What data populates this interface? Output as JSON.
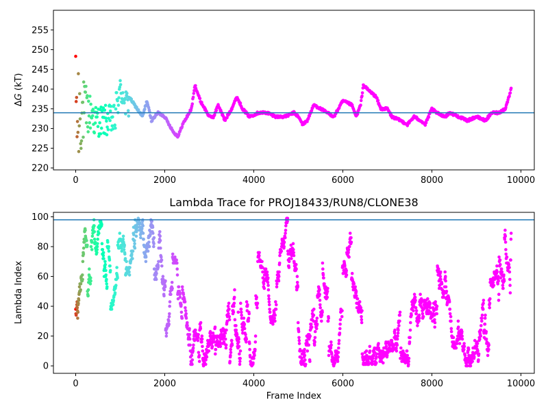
{
  "colors": {
    "reference_line": "#1f77b4",
    "colormap": "rainbow"
  },
  "chart_data": [
    {
      "type": "scatter",
      "title": "",
      "xlabel": "",
      "ylabel_delta": "Δ",
      "ylabel_g": "G",
      "ylabel_unit": " (kT)",
      "xlim": [
        -500,
        10300
      ],
      "ylim": [
        219.5,
        260
      ],
      "xticks": [
        0,
        2000,
        4000,
        6000,
        8000,
        10000
      ],
      "yticks": [
        220,
        225,
        230,
        235,
        240,
        245,
        250,
        255
      ],
      "reference_y": 234,
      "x_end": 9780,
      "estimate_trace_keypoints": [
        [
          1200,
          238
        ],
        [
          1500,
          233
        ],
        [
          1600,
          237
        ],
        [
          1700,
          232
        ],
        [
          1850,
          234
        ],
        [
          2000,
          233
        ],
        [
          2200,
          229
        ],
        [
          2300,
          228
        ],
        [
          2400,
          231
        ],
        [
          2500,
          233
        ],
        [
          2600,
          235
        ],
        [
          2680,
          241
        ],
        [
          2800,
          237
        ],
        [
          2900,
          235
        ],
        [
          3000,
          233
        ],
        [
          3100,
          233
        ],
        [
          3200,
          236
        ],
        [
          3350,
          232
        ],
        [
          3500,
          235
        ],
        [
          3620,
          238
        ],
        [
          3750,
          235
        ],
        [
          3900,
          233
        ],
        [
          4100,
          234
        ],
        [
          4300,
          234
        ],
        [
          4500,
          233
        ],
        [
          4700,
          233
        ],
        [
          4900,
          234
        ],
        [
          5000,
          233
        ],
        [
          5100,
          231
        ],
        [
          5200,
          232
        ],
        [
          5350,
          236
        ],
        [
          5500,
          235
        ],
        [
          5650,
          234
        ],
        [
          5800,
          233
        ],
        [
          5950,
          236
        ],
        [
          6000,
          237
        ],
        [
          6200,
          236
        ],
        [
          6300,
          233
        ],
        [
          6400,
          236
        ],
        [
          6460,
          241
        ],
        [
          6550,
          240
        ],
        [
          6750,
          238
        ],
        [
          6850,
          235
        ],
        [
          7000,
          235
        ],
        [
          7100,
          233
        ],
        [
          7300,
          232
        ],
        [
          7450,
          231
        ],
        [
          7600,
          233
        ],
        [
          7750,
          232
        ],
        [
          7850,
          231
        ],
        [
          8000,
          235
        ],
        [
          8100,
          234
        ],
        [
          8300,
          233
        ],
        [
          8400,
          234
        ],
        [
          8600,
          233
        ],
        [
          8800,
          232
        ],
        [
          9000,
          233
        ],
        [
          9200,
          232
        ],
        [
          9350,
          234
        ],
        [
          9500,
          234
        ],
        [
          9650,
          235
        ],
        [
          9780,
          240
        ]
      ]
    },
    {
      "type": "scatter",
      "title": "Lambda Trace for PROJ18433/RUN8/CLONE38",
      "xlabel": "Frame Index",
      "ylabel": "Lambda Index",
      "xlim": [
        -500,
        10300
      ],
      "ylim": [
        -5,
        103
      ],
      "xticks": [
        0,
        2000,
        4000,
        6000,
        8000,
        10000
      ],
      "yticks": [
        0,
        20,
        40,
        60,
        80,
        100
      ],
      "reference_y": 98,
      "lambda_range": [
        0,
        99
      ],
      "x_end": 9780
    }
  ]
}
